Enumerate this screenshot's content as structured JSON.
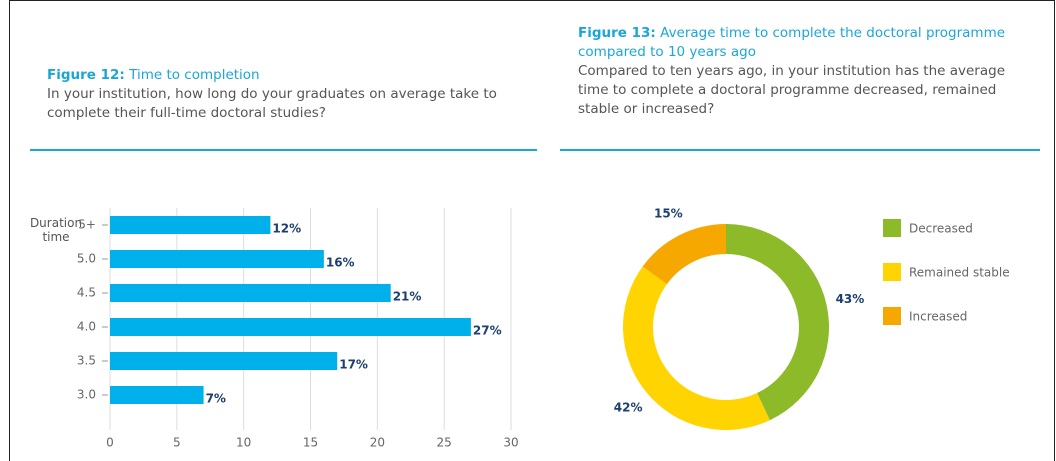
{
  "chart_data": [
    {
      "type": "bar",
      "orientation": "horizontal",
      "figure_label": "Figure 12:",
      "title": "Time to completion",
      "subtitle": "In your institution, how long do your graduates on average take to complete their full-time doctoral studies?",
      "y_label": "Duration time",
      "categories": [
        "5+",
        "5.0",
        "4.5",
        "4.0",
        "3.5",
        "3.0"
      ],
      "values": [
        12,
        16,
        21,
        27,
        17,
        7
      ],
      "value_labels": [
        "12%",
        "16%",
        "21%",
        "27%",
        "17%",
        "7%"
      ],
      "color": "#00b0ea",
      "xlim": [
        0,
        30
      ],
      "xticks": [
        0,
        5,
        10,
        15,
        20,
        25,
        30
      ],
      "grid": true
    },
    {
      "type": "donut",
      "figure_label": "Figure 13:",
      "title": "Average time to complete the doctoral programme compared to 10 years ago",
      "subtitle": "Compared to ten years ago, in your institution has the average time to complete a doctoral programme decreased, remained stable or increased?",
      "categories": [
        "Decreased",
        "Remained stable",
        "Increased"
      ],
      "values": [
        43,
        42,
        15
      ],
      "value_labels": [
        "43%",
        "42%",
        "15%"
      ],
      "colors": [
        "#8dba28",
        "#ffd400",
        "#f7a800"
      ],
      "legend": "right"
    }
  ]
}
